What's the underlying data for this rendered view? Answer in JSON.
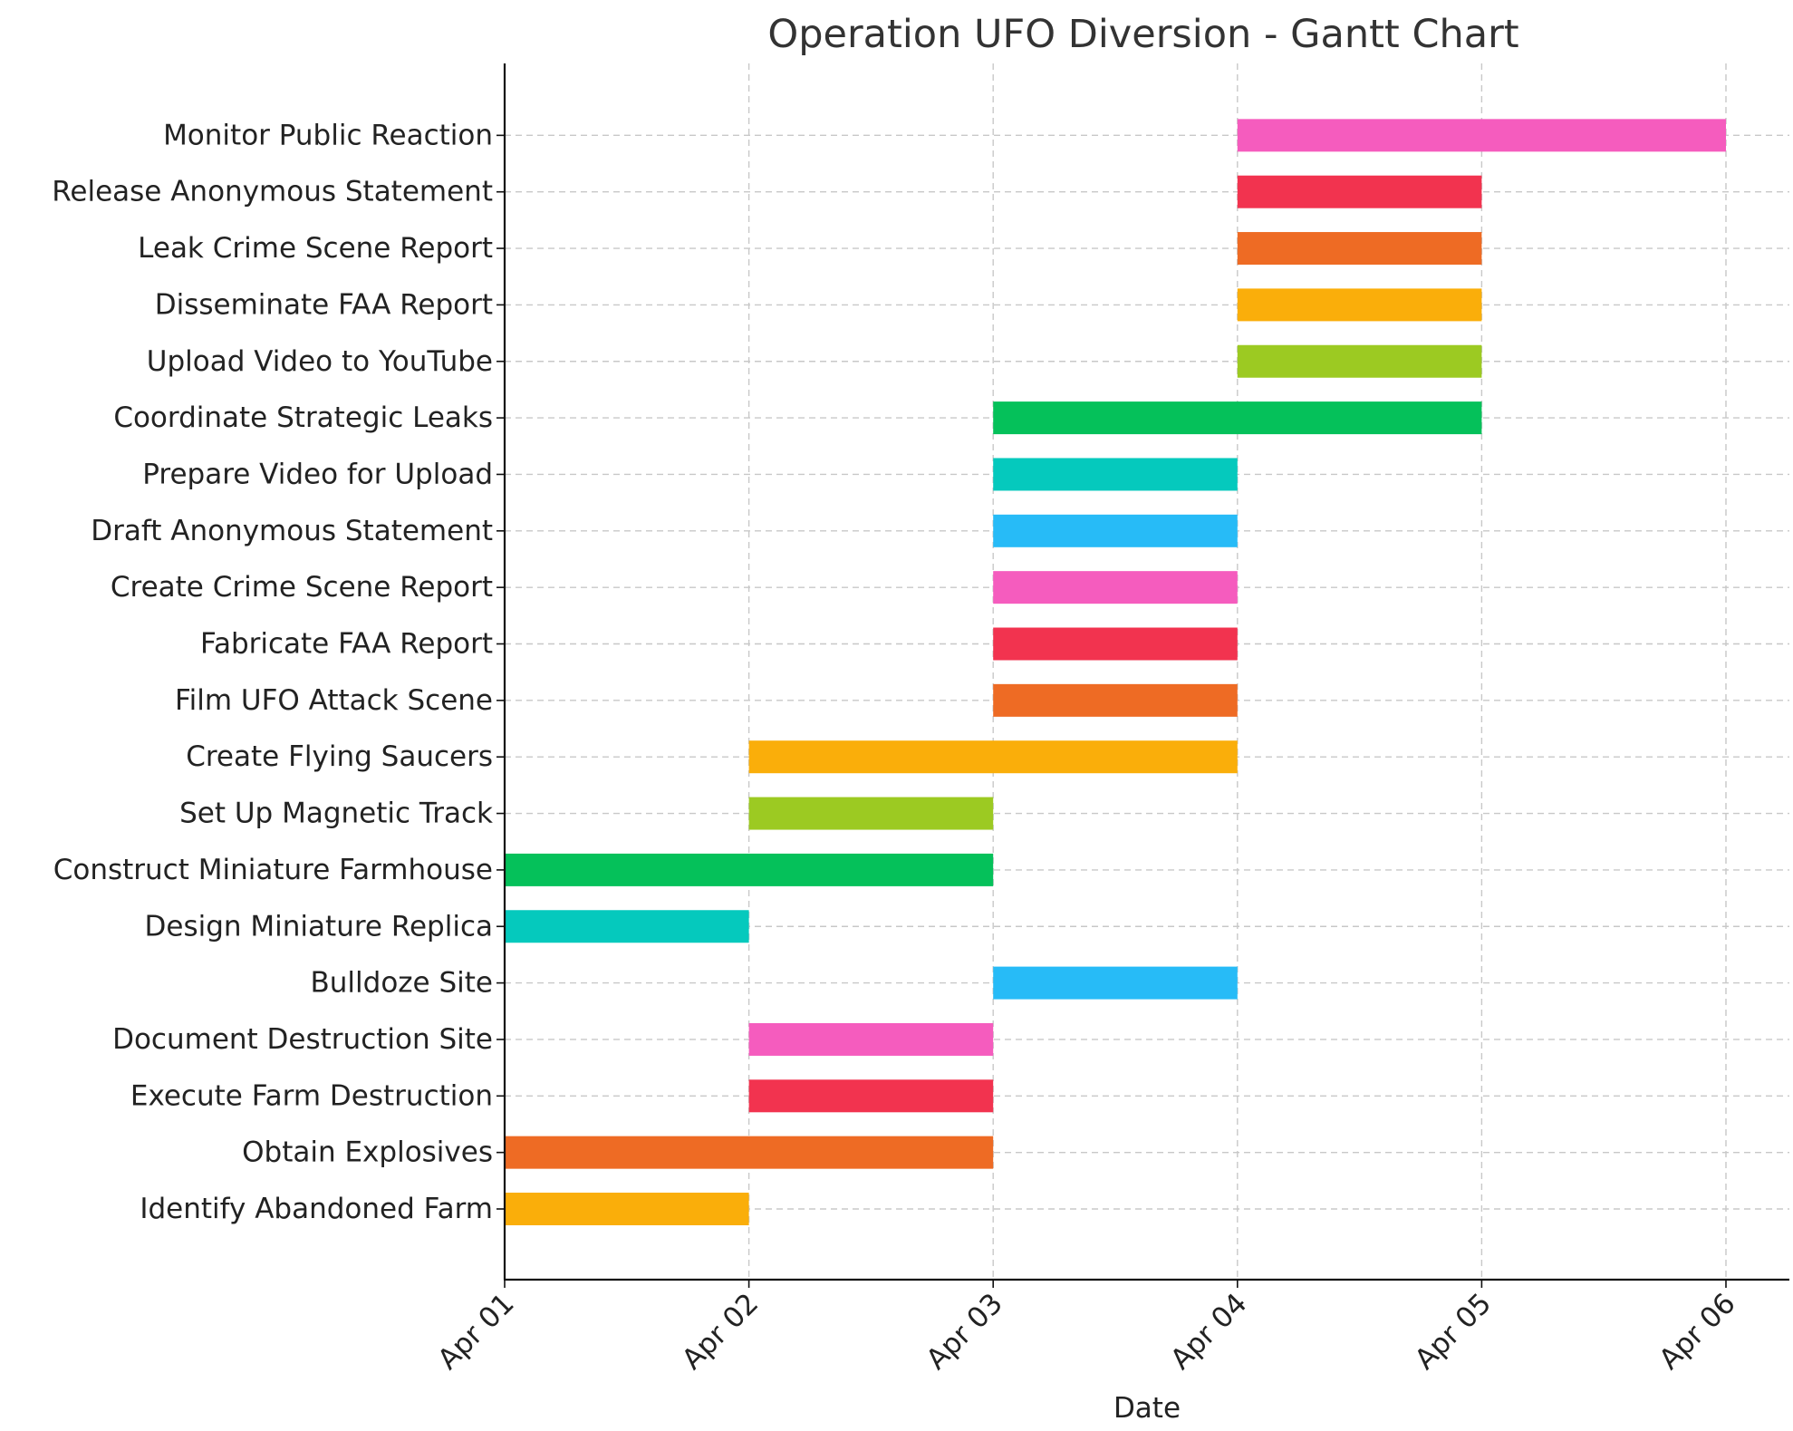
{
  "chart_data": {
    "type": "bar",
    "orientation": "horizontal-gantt",
    "title": "Operation UFO Diversion - Gantt Chart",
    "xlabel": "Date",
    "ylabel": "",
    "x_ticks": [
      "Apr 01",
      "Apr 02",
      "Apr 03",
      "Apr 04",
      "Apr 05",
      "Apr 06"
    ],
    "grid": true,
    "tasks": [
      {
        "name": "Identify Abandoned Farm",
        "start": "Apr 01",
        "end": "Apr 02",
        "color": "#FAAE0A"
      },
      {
        "name": "Obtain Explosives",
        "start": "Apr 01",
        "end": "Apr 03",
        "color": "#EE6B24"
      },
      {
        "name": "Execute Farm Destruction",
        "start": "Apr 02",
        "end": "Apr 03",
        "color": "#F2334F"
      },
      {
        "name": "Document Destruction Site",
        "start": "Apr 02",
        "end": "Apr 03",
        "color": "#F55CBE"
      },
      {
        "name": "Bulldoze Site",
        "start": "Apr 03",
        "end": "Apr 04",
        "color": "#27BBF7"
      },
      {
        "name": "Design Miniature Replica",
        "start": "Apr 01",
        "end": "Apr 02",
        "color": "#05C9BD"
      },
      {
        "name": "Construct Miniature Farmhouse",
        "start": "Apr 01",
        "end": "Apr 03",
        "color": "#05C15A"
      },
      {
        "name": "Set Up Magnetic Track",
        "start": "Apr 02",
        "end": "Apr 03",
        "color": "#9CCA22"
      },
      {
        "name": "Create Flying Saucers",
        "start": "Apr 02",
        "end": "Apr 04",
        "color": "#FAAE0A"
      },
      {
        "name": "Film UFO Attack Scene",
        "start": "Apr 03",
        "end": "Apr 04",
        "color": "#EE6B24"
      },
      {
        "name": "Fabricate FAA Report",
        "start": "Apr 03",
        "end": "Apr 04",
        "color": "#F2334F"
      },
      {
        "name": "Create Crime Scene Report",
        "start": "Apr 03",
        "end": "Apr 04",
        "color": "#F55CBE"
      },
      {
        "name": "Draft Anonymous Statement",
        "start": "Apr 03",
        "end": "Apr 04",
        "color": "#27BBF7"
      },
      {
        "name": "Prepare Video for Upload",
        "start": "Apr 03",
        "end": "Apr 04",
        "color": "#05C9BD"
      },
      {
        "name": "Coordinate Strategic Leaks",
        "start": "Apr 03",
        "end": "Apr 05",
        "color": "#05C15A"
      },
      {
        "name": "Upload Video to YouTube",
        "start": "Apr 04",
        "end": "Apr 05",
        "color": "#9CCA22"
      },
      {
        "name": "Disseminate FAA Report",
        "start": "Apr 04",
        "end": "Apr 05",
        "color": "#FAAE0A"
      },
      {
        "name": "Leak Crime Scene Report",
        "start": "Apr 04",
        "end": "Apr 05",
        "color": "#EE6B24"
      },
      {
        "name": "Release Anonymous Statement",
        "start": "Apr 04",
        "end": "Apr 05",
        "color": "#F2334F"
      },
      {
        "name": "Monitor Public Reaction",
        "start": "Apr 04",
        "end": "Apr 06",
        "color": "#F55CBE"
      }
    ]
  }
}
